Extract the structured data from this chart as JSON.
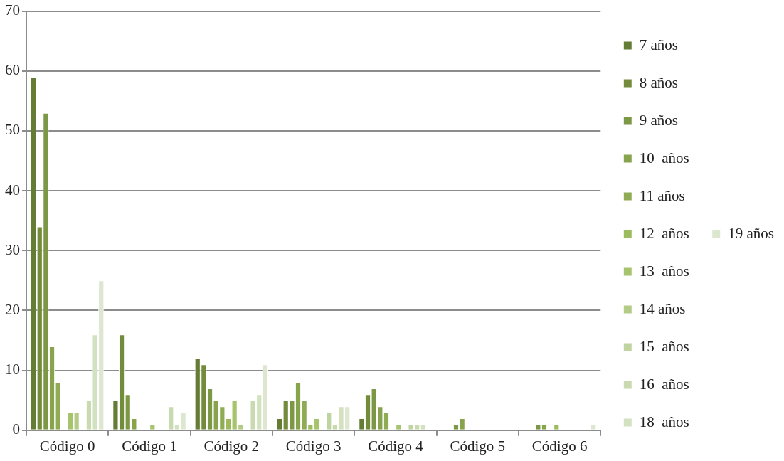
{
  "chart_data": {
    "type": "bar",
    "categories": [
      "Código 0",
      "Código 1",
      "Código 2",
      "Código 3",
      "Código 4",
      "Código 5",
      "Código 6"
    ],
    "series": [
      {
        "name": "7 años",
        "color": "#657c35",
        "values": [
          59,
          5,
          12,
          2,
          2,
          0,
          0
        ]
      },
      {
        "name": "8 años",
        "color": "#728c3c",
        "values": [
          34,
          16,
          11,
          5,
          6,
          0,
          0
        ]
      },
      {
        "name": "9 años",
        "color": "#7d9845",
        "values": [
          53,
          6,
          7,
          5,
          7,
          1,
          1
        ]
      },
      {
        "name": "10  años",
        "color": "#87a34c",
        "values": [
          14,
          2,
          5,
          8,
          4,
          2,
          1
        ]
      },
      {
        "name": "11 años",
        "color": "#8fac55",
        "values": [
          8,
          0,
          4,
          5,
          3,
          0,
          0
        ]
      },
      {
        "name": "12  años",
        "color": "#9bbb5c",
        "values": [
          0,
          0,
          2,
          1,
          0,
          0,
          1
        ]
      },
      {
        "name": "13  años",
        "color": "#a6c46d",
        "values": [
          3,
          1,
          5,
          2,
          1,
          0,
          0
        ]
      },
      {
        "name": "14 años",
        "color": "#b3cb87",
        "values": [
          3,
          0,
          1,
          0,
          0,
          0,
          0
        ]
      },
      {
        "name": "15  años",
        "color": "#bfd4a0",
        "values": [
          0,
          0,
          0,
          3,
          1,
          0,
          0
        ]
      },
      {
        "name": "16  años",
        "color": "#c9dab0",
        "values": [
          5,
          4,
          5,
          1,
          1,
          0,
          0
        ]
      },
      {
        "name": "18  años",
        "color": "#d2e1bf",
        "values": [
          16,
          1,
          6,
          4,
          1,
          0,
          0
        ]
      },
      {
        "name": "19 años",
        "color": "#dde6cf",
        "values": [
          25,
          3,
          11,
          4,
          0,
          0,
          1
        ]
      }
    ],
    "ylim": [
      0,
      70
    ],
    "yticks": [
      0,
      10,
      20,
      30,
      40,
      50,
      60,
      70
    ],
    "grid": "y",
    "legend": "right"
  }
}
